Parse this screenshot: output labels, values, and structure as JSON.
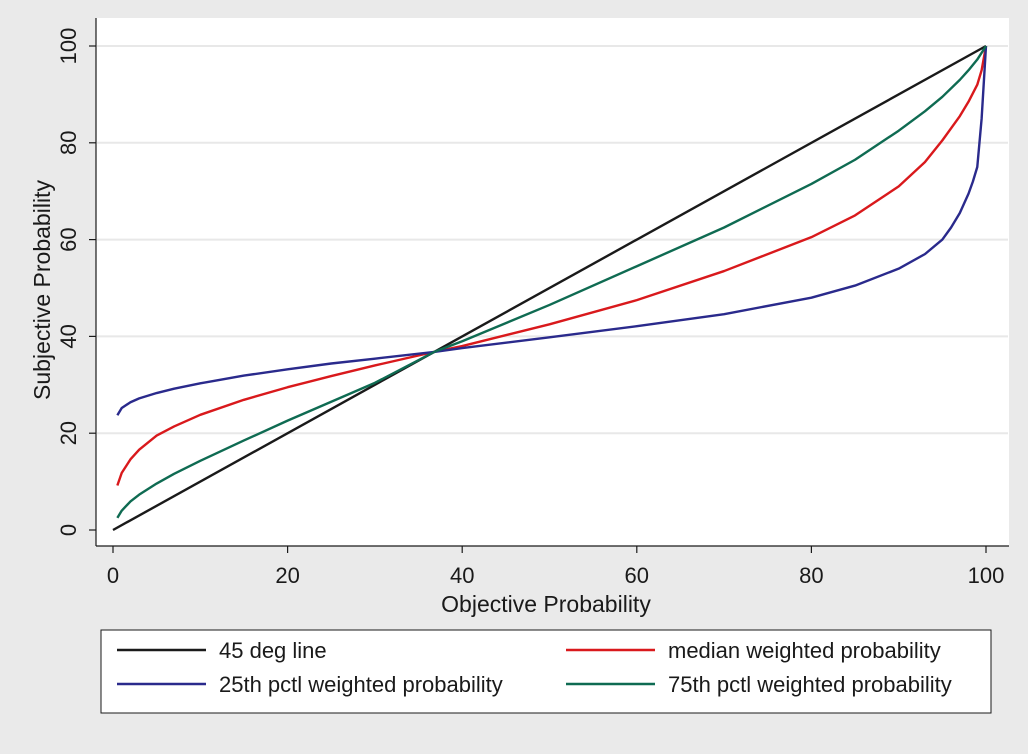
{
  "colors": {
    "background": "#eaeaea",
    "plot_background": "#ffffff",
    "gridline": "#e8e8e8",
    "axis": "#1a1a1a"
  },
  "chart_data": {
    "type": "line",
    "xlabel": "Objective Probability",
    "ylabel": "Subjective Probability",
    "xlim": [
      0,
      100
    ],
    "ylim": [
      0,
      100
    ],
    "xticks": [
      0,
      20,
      40,
      60,
      80,
      100
    ],
    "yticks": [
      0,
      20,
      40,
      60,
      80,
      100
    ],
    "grid": "horizontal",
    "legend_position": "bottom",
    "series": [
      {
        "name": "45 deg line",
        "color": "#1a1a1a",
        "x": [
          0,
          100
        ],
        "y": [
          0,
          100
        ]
      },
      {
        "name": "median weighted probability",
        "color": "#d9191c",
        "x": [
          0.5,
          1,
          2,
          3,
          5,
          7,
          10,
          15,
          20,
          25,
          30,
          36.8,
          40,
          50,
          60,
          70,
          80,
          85,
          90,
          93,
          95,
          97,
          98,
          99,
          99.5,
          100
        ],
        "y": [
          9.2,
          11.8,
          14.6,
          16.6,
          19.5,
          21.4,
          23.8,
          26.9,
          29.5,
          31.8,
          34.0,
          36.8,
          38.0,
          42.5,
          47.5,
          53.5,
          60.5,
          65.0,
          71.0,
          76.0,
          80.5,
          85.5,
          88.5,
          92.0,
          95.0,
          100
        ]
      },
      {
        "name": "25th pctl weighted probability",
        "color": "#2a2a8c",
        "x": [
          0.5,
          1,
          2,
          3,
          5,
          7,
          10,
          15,
          20,
          25,
          30,
          36.8,
          40,
          50,
          60,
          70,
          80,
          85,
          90,
          93,
          95,
          96,
          97,
          98,
          98.5,
          99,
          99.5,
          100
        ],
        "y": [
          23.7,
          25.2,
          26.4,
          27.2,
          28.3,
          29.2,
          30.3,
          31.9,
          33.2,
          34.4,
          35.4,
          36.8,
          37.6,
          39.8,
          42.1,
          44.6,
          48.0,
          50.5,
          54.0,
          57.0,
          60.0,
          62.5,
          65.5,
          69.5,
          72.0,
          75.0,
          85.0,
          100
        ]
      },
      {
        "name": "75th pctl weighted probability",
        "color": "#0f6b52",
        "x": [
          0.5,
          1,
          2,
          3,
          5,
          7,
          10,
          15,
          20,
          25,
          30,
          36.8,
          40,
          50,
          60,
          70,
          80,
          85,
          90,
          93,
          95,
          97,
          98,
          99,
          100
        ],
        "y": [
          2.5,
          4.0,
          5.9,
          7.3,
          9.6,
          11.6,
          14.3,
          18.5,
          22.6,
          26.5,
          30.4,
          36.8,
          39.0,
          46.5,
          54.5,
          62.5,
          71.5,
          76.5,
          82.5,
          86.5,
          89.5,
          93.0,
          95.0,
          97.2,
          100
        ]
      }
    ]
  }
}
